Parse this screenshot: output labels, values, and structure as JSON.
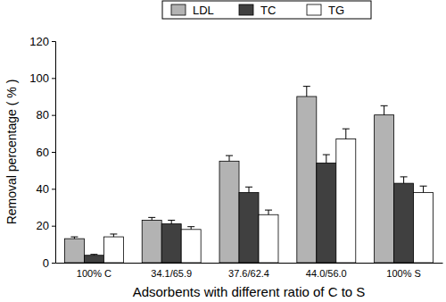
{
  "chart_data": {
    "type": "bar",
    "x_label": "Adsorbents with different ratio of C to S",
    "y_label": "Removal percentage ( % )",
    "categories": [
      "100% C",
      "34.1/65.9",
      "37.6/62.4",
      "44.0/56.0",
      "100% S"
    ],
    "series": [
      {
        "name": "LDL",
        "color": "#b3b3b3",
        "values": [
          13,
          23,
          55,
          90,
          80
        ],
        "errors": [
          1,
          1.5,
          3,
          5.5,
          5
        ]
      },
      {
        "name": "TC",
        "color": "#404040",
        "values": [
          4,
          21,
          38,
          54,
          43
        ],
        "errors": [
          0.5,
          2,
          3,
          4.5,
          3.5
        ]
      },
      {
        "name": "TG",
        "color": "#ffffff",
        "values": [
          14,
          18,
          26,
          67,
          38
        ],
        "errors": [
          1.5,
          1.5,
          2.5,
          5.5,
          3.5
        ]
      }
    ],
    "ylim": [
      0,
      120
    ],
    "yticks": [
      0,
      20,
      40,
      60,
      80,
      100,
      120
    ],
    "grid": false,
    "legend": "top"
  }
}
